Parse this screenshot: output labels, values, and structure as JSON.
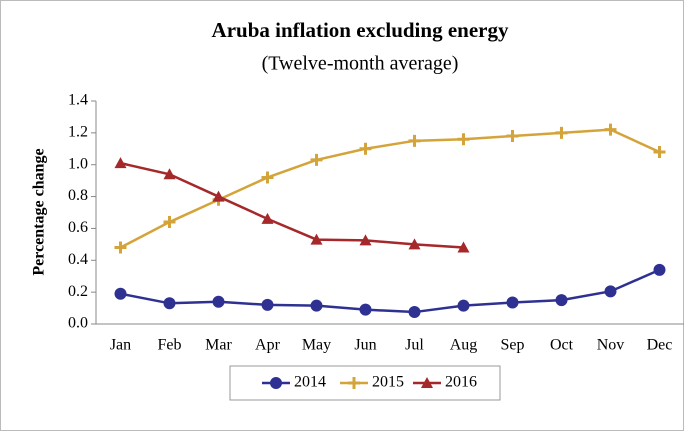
{
  "chart_data": {
    "type": "line",
    "title": "Aruba inflation excluding energy",
    "subtitle": "(Twelve-month average)",
    "y_label": "Percentage change",
    "categories": [
      "Jan",
      "Feb",
      "Mar",
      "Apr",
      "May",
      "Jun",
      "Jul",
      "Aug",
      "Sep",
      "Oct",
      "Nov",
      "Dec"
    ],
    "series": [
      {
        "name": "2014",
        "color": "#2e3192",
        "marker": "circle",
        "values": [
          0.19,
          0.13,
          0.14,
          0.12,
          0.115,
          0.09,
          0.075,
          0.115,
          0.135,
          0.15,
          0.205,
          0.34
        ]
      },
      {
        "name": "2015",
        "color": "#d4a43a",
        "marker": "plus",
        "values": [
          0.48,
          0.64,
          0.78,
          0.92,
          1.03,
          1.1,
          1.15,
          1.16,
          1.18,
          1.2,
          1.22,
          1.08
        ]
      },
      {
        "name": "2016",
        "color": "#a5282a",
        "marker": "triangle",
        "values": [
          1.01,
          0.94,
          0.8,
          0.66,
          0.53,
          0.525,
          0.5,
          0.48,
          null,
          null,
          null,
          null
        ]
      }
    ],
    "ylim": [
      0,
      1.4
    ],
    "yticks": [
      {
        "value": 0,
        "label": "0.0"
      },
      {
        "value": 0.2,
        "label": "0.2"
      },
      {
        "value": 0.4,
        "label": "0.4"
      },
      {
        "value": 0.6,
        "label": "0.6"
      },
      {
        "value": 0.8,
        "label": "0.8"
      },
      {
        "value": 1.0,
        "label": "1.0"
      },
      {
        "value": 1.2,
        "label": "1.2"
      },
      {
        "value": 1.4,
        "label": "1.4"
      }
    ],
    "grid": false,
    "legend": "bottom"
  }
}
